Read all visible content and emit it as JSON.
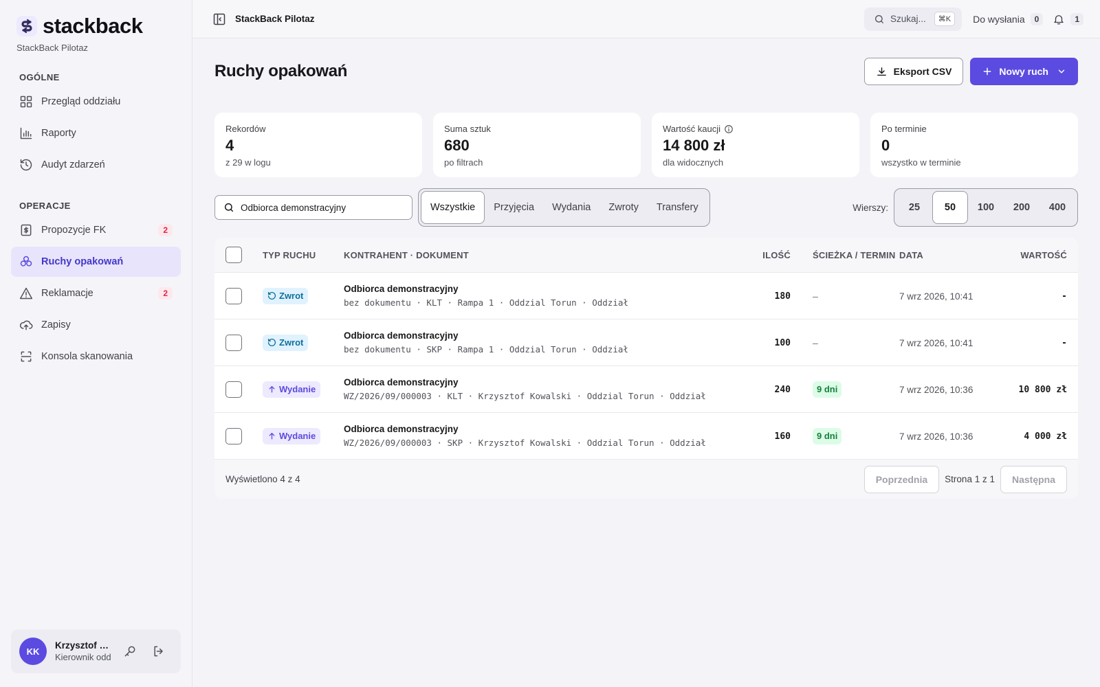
{
  "brand": {
    "name": "stackback",
    "subtitle": "StackBack Pilotaz"
  },
  "sidebar": {
    "section_general": "OGÓLNE",
    "general_items": [
      {
        "label": "Przegląd oddziału",
        "icon": "grid-icon"
      },
      {
        "label": "Raporty",
        "icon": "bar-chart-icon"
      },
      {
        "label": "Audyt zdarzeń",
        "icon": "history-icon"
      }
    ],
    "section_ops": "OPERACJE",
    "ops_items": [
      {
        "label": "Propozycje FK",
        "icon": "invoice-icon",
        "badge": "2"
      },
      {
        "label": "Ruchy opakowań",
        "icon": "recycle-icon",
        "active": true
      },
      {
        "label": "Reklamacje",
        "icon": "warning-icon",
        "badge": "2"
      },
      {
        "label": "Zapisy",
        "icon": "cloud-upload-icon"
      },
      {
        "label": "Konsola skanowania",
        "icon": "scan-icon"
      }
    ],
    "user": {
      "initials": "KK",
      "name": "Krzysztof K...",
      "role": "Kierownik odd"
    }
  },
  "topbar": {
    "title": "StackBack Pilotaz",
    "search_label": "Szukaj...",
    "shortcut": "⌘K",
    "queue_label": "Do wysłania",
    "queue_count": "0",
    "notif_count": "1"
  },
  "page": {
    "title": "Ruchy opakowań",
    "export_label": "Eksport CSV",
    "new_label": "Nowy ruch"
  },
  "stats": [
    {
      "label": "Rekordów",
      "value": "4",
      "sub": "z 29 w logu"
    },
    {
      "label": "Suma sztuk",
      "value": "680",
      "sub": "po filtrach"
    },
    {
      "label": "Wartość kaucji",
      "value": "14 800 zł",
      "sub": "dla widocznych"
    },
    {
      "label": "Po terminie",
      "value": "0",
      "sub": "wszystko w terminie"
    }
  ],
  "filters": {
    "search_value": "Odbiorca demonstracyjny",
    "tabs": [
      "Wszystkie",
      "Przyjęcia",
      "Wydania",
      "Zwroty",
      "Transfery"
    ],
    "active_tab": "Wszystkie",
    "rows_label": "Wierszy:",
    "rows_options": [
      "25",
      "50",
      "100",
      "200",
      "400"
    ],
    "rows_selected": "50"
  },
  "table": {
    "headers": {
      "type": "TYP RUCHU",
      "main": "KONTRAHENT · DOKUMENT",
      "qty": "ILOŚĆ",
      "path": "ŚCIEŻKA / TERMIN",
      "date": "DATA",
      "value": "WARTOŚĆ"
    },
    "rows": [
      {
        "type": "Zwrot",
        "kind": "zwrot",
        "title": "Odbiorca demonstracyjny",
        "sub": "bez dokumentu · KLT · Rampa 1 · Oddzial Torun · Oddział",
        "qty": "180",
        "path": "–",
        "date": "7 wrz 2026, 10:41",
        "value": "-"
      },
      {
        "type": "Zwrot",
        "kind": "zwrot",
        "title": "Odbiorca demonstracyjny",
        "sub": "bez dokumentu · SKP · Rampa 1 · Oddzial Torun · Oddział",
        "qty": "100",
        "path": "–",
        "date": "7 wrz 2026, 10:41",
        "value": "-"
      },
      {
        "type": "Wydanie",
        "kind": "wydanie",
        "title": "Odbiorca demonstracyjny",
        "sub": "WZ/2026/09/000003 · KLT · Krzysztof Kowalski · Oddzial Torun · Oddział",
        "qty": "240",
        "path": "9 dni",
        "date": "7 wrz 2026, 10:36",
        "value": "10 800 zł"
      },
      {
        "type": "Wydanie",
        "kind": "wydanie",
        "title": "Odbiorca demonstracyjny",
        "sub": "WZ/2026/09/000003 · SKP · Krzysztof Kowalski · Oddzial Torun · Oddział",
        "qty": "160",
        "path": "9 dni",
        "date": "7 wrz 2026, 10:36",
        "value": "4 000 zł"
      }
    ],
    "footer": "Wyświetlono 4 z 4",
    "prev": "Poprzednia",
    "page_info": "Strona 1 z 1",
    "next": "Następna"
  },
  "colors": {
    "accent": "#5b4be0",
    "danger": "#dc2650",
    "success": "#15803d"
  }
}
